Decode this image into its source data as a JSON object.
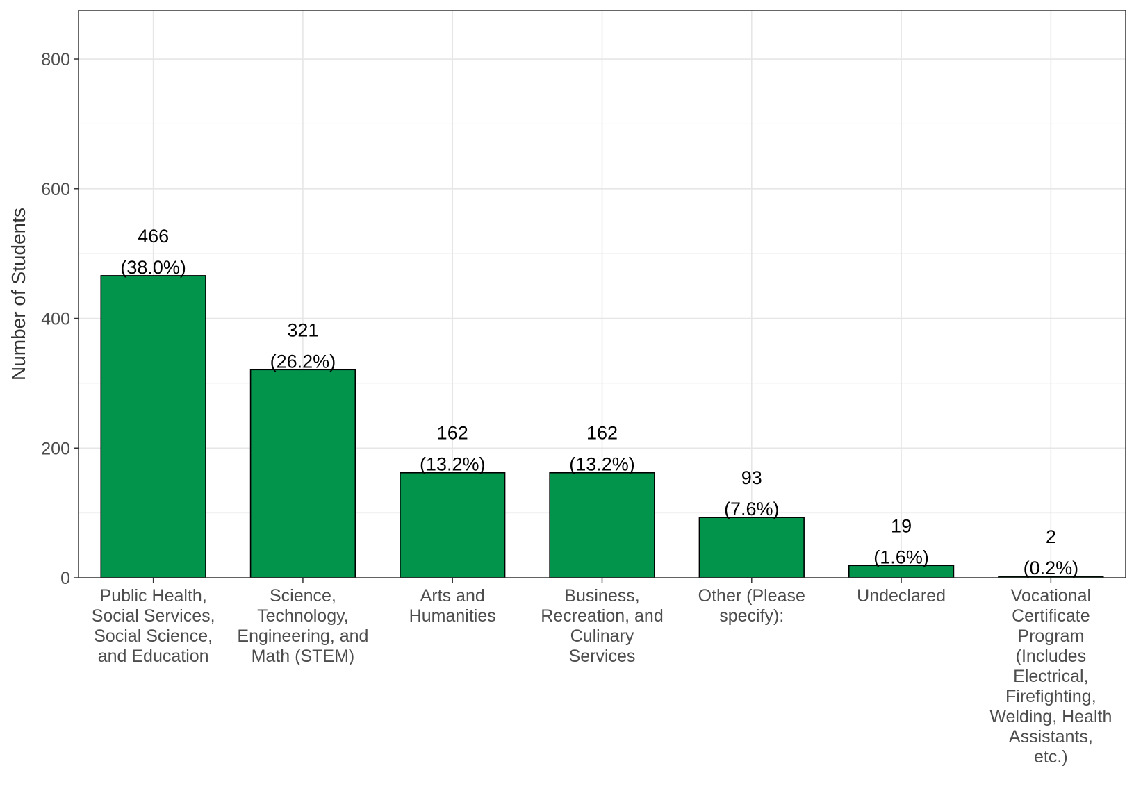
{
  "chart_data": {
    "type": "bar",
    "title": "",
    "xlabel": "",
    "ylabel": "Number of Students",
    "ylim": [
      0,
      875
    ],
    "yticks": [
      0,
      200,
      400,
      600,
      800
    ],
    "grid": true,
    "bar_color": "#03944c",
    "bar_stroke": "#000000",
    "categories": [
      [
        "Public Health,",
        "Social Services,",
        "Social Science,",
        "and Education"
      ],
      [
        "Science,",
        "Technology,",
        "Engineering, and",
        "Math (STEM)"
      ],
      [
        "Arts and",
        "Humanities"
      ],
      [
        "Business,",
        "Recreation, and",
        "Culinary",
        "Services"
      ],
      [
        "Other (Please",
        "specify):"
      ],
      [
        "Undeclared"
      ],
      [
        "Vocational",
        "Certificate",
        "Program",
        "(Includes",
        "Electrical,",
        "Firefighting,",
        "Welding, Health",
        "Assistants,",
        "etc.)"
      ]
    ],
    "values": [
      466,
      321,
      162,
      162,
      93,
      19,
      2
    ],
    "percent_labels": [
      "(38.0%)",
      "(26.2%)",
      "(13.2%)",
      "(13.2%)",
      "(7.6%)",
      "(1.6%)",
      "(0.2%)"
    ]
  }
}
